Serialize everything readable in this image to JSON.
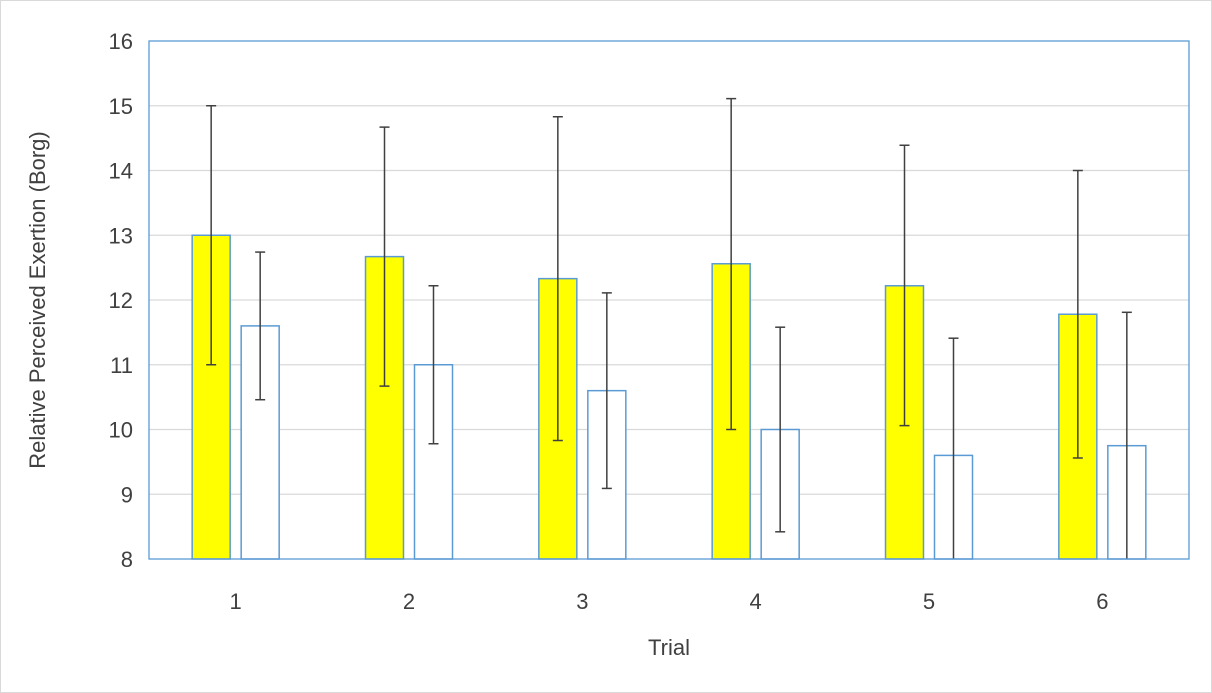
{
  "chart_data": {
    "type": "bar",
    "title": "",
    "xlabel": "Trial",
    "ylabel": "Relative Perceived Exertion (Borg)",
    "categories": [
      "1",
      "2",
      "3",
      "4",
      "5",
      "6"
    ],
    "ylim": [
      8,
      16
    ],
    "yticks": [
      "8",
      "9",
      "10",
      "11",
      "12",
      "13",
      "14",
      "15",
      "16"
    ],
    "grid": true,
    "legend": "none",
    "series": [
      {
        "values": [
          13.0,
          12.67,
          12.33,
          12.56,
          12.22,
          11.78
        ],
        "error_low": [
          11.0,
          10.67,
          9.83,
          10.0,
          10.06,
          9.56
        ],
        "error_high": [
          15.0,
          14.67,
          14.83,
          15.11,
          14.39,
          14.0
        ],
        "fill": "#ffff00",
        "stroke": "#5b9bd5"
      },
      {
        "values": [
          11.6,
          11.0,
          10.6,
          10.0,
          9.6,
          9.75
        ],
        "error_low": [
          10.46,
          9.78,
          9.09,
          8.42,
          7.8,
          7.7
        ],
        "error_high": [
          12.74,
          12.22,
          12.11,
          11.58,
          11.41,
          11.81
        ],
        "fill": "#ffffff",
        "stroke": "#5b9bd5"
      }
    ]
  }
}
